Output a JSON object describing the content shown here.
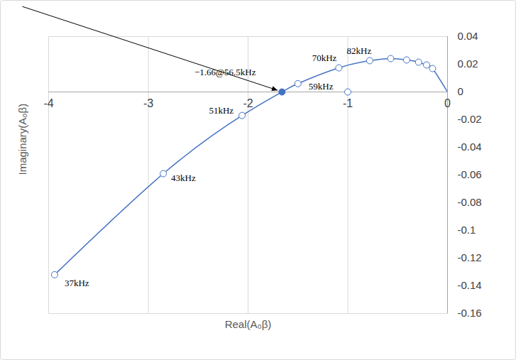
{
  "chart_data": {
    "type": "line",
    "xlabel": "Real(A₀β)",
    "ylabel": "Imaginary(A₀β)",
    "xlim": [
      -4,
      0
    ],
    "ylim": [
      -0.16,
      0.04
    ],
    "xticks": [
      -4,
      -3,
      -2,
      -1,
      0
    ],
    "yticks": [
      -0.16,
      -0.14,
      -0.12,
      -0.1,
      -0.08,
      -0.06,
      -0.04,
      -0.02,
      0,
      0.02,
      0.04
    ],
    "grid": "x",
    "color": "#4472c4",
    "curve": {
      "x": [
        -3.94,
        -2.85,
        -2.06,
        -1.66,
        -1.5,
        -1.09,
        -0.78,
        -0.57,
        -0.41,
        -0.29,
        -0.21,
        -0.15,
        0
      ],
      "y": [
        -0.132,
        -0.059,
        -0.017,
        0,
        0.006,
        0.0174,
        0.0226,
        0.0241,
        0.0231,
        0.0215,
        0.0195,
        0.0169,
        0
      ]
    },
    "markers": {
      "x": [
        -3.94,
        -2.85,
        -2.06,
        -1.5,
        -1.09,
        -0.78,
        -0.57,
        -0.41,
        -0.29,
        -0.21,
        -0.15,
        -1
      ],
      "y": [
        -0.132,
        -0.059,
        -0.017,
        0.006,
        0.0174,
        0.0226,
        0.0241,
        0.0231,
        0.0215,
        0.0195,
        0.0169,
        0
      ],
      "marker": "circle-open"
    },
    "highlight": {
      "x": -1.66,
      "y": 0,
      "label": "−1.66@56.5kHz",
      "marker": "circle"
    },
    "annotations": [
      {
        "text": "37kHz",
        "x": -3.94,
        "y": -0.132
      },
      {
        "text": "43kHz",
        "x": -2.85,
        "y": -0.059
      },
      {
        "text": "51kHz",
        "x": -2.06,
        "y": -0.017
      },
      {
        "text": "59kHz",
        "x": -1.5,
        "y": 0.006
      },
      {
        "text": "70kHz",
        "x": -1.09,
        "y": 0.0174
      },
      {
        "text": "82kHz",
        "x": -0.78,
        "y": 0.0226
      }
    ]
  }
}
